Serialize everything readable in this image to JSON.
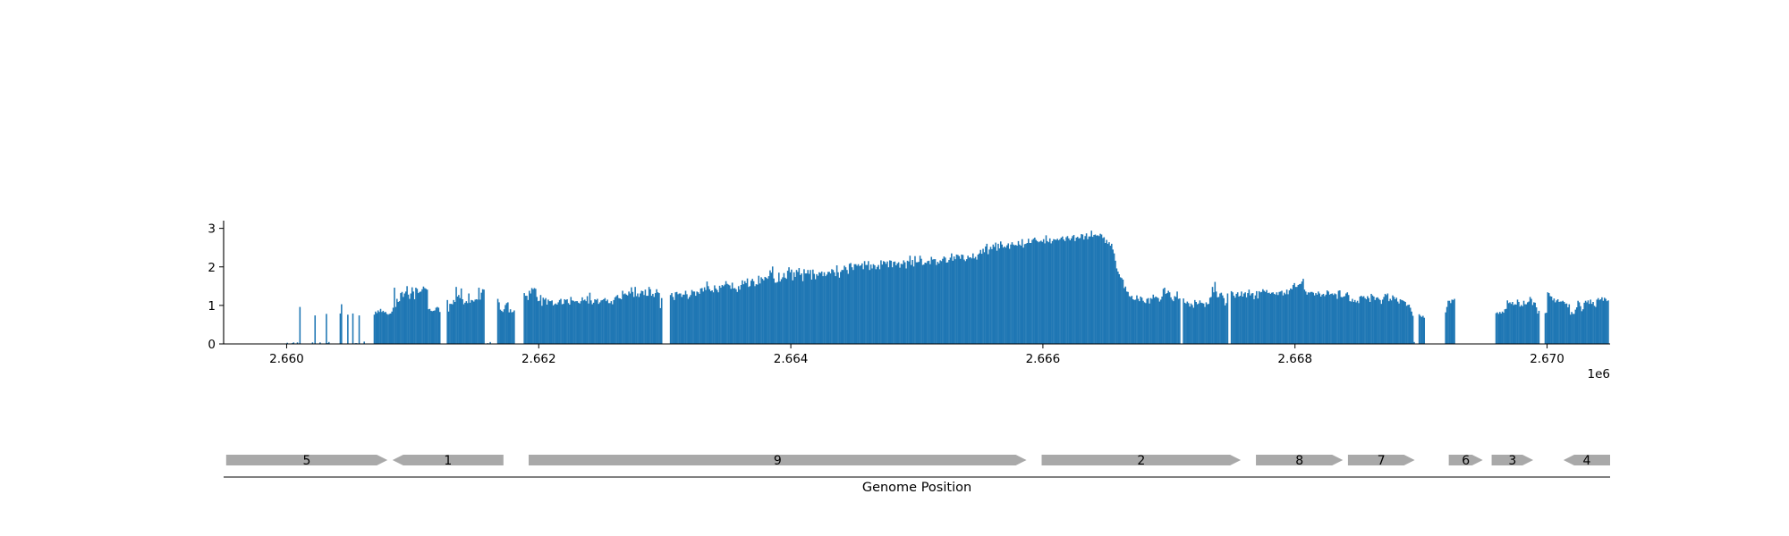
{
  "chart_data": [
    {
      "type": "bar",
      "title": "",
      "xlabel": "",
      "ylabel": "",
      "x_offset_label": "1e6",
      "xlim": [
        2659500,
        2670500
      ],
      "ylim": [
        0,
        3.2
      ],
      "x_ticks": [
        {
          "value": 2660000,
          "label": "2.660"
        },
        {
          "value": 2662000,
          "label": "2.662"
        },
        {
          "value": 2664000,
          "label": "2.664"
        },
        {
          "value": 2666000,
          "label": "2.666"
        },
        {
          "value": 2668000,
          "label": "2.668"
        },
        {
          "value": 2670000,
          "label": "2.670"
        }
      ],
      "y_ticks": [
        {
          "value": 0,
          "label": "0"
        },
        {
          "value": 1,
          "label": "1"
        },
        {
          "value": 2,
          "label": "2"
        },
        {
          "value": 3,
          "label": "3"
        }
      ],
      "bar_color": "#1f77b4",
      "bin_width": 10,
      "series_start": 2660000,
      "values": [
        0.03,
        0.0,
        0.0,
        0.0,
        0.02,
        0.04,
        0.0,
        0.0,
        0.04,
        0.0,
        0.96,
        0.0,
        0.0,
        0.0,
        0.0,
        0.0,
        0.0,
        0.0,
        0.0,
        0.0,
        0.04,
        0.0,
        0.74,
        0.0,
        0.0,
        0.0,
        0.04,
        0.0,
        0.0,
        0.0,
        0.0,
        0.78,
        0.02,
        0.05,
        0.0,
        0.0,
        0.0,
        0.0,
        0.0,
        0.0,
        0.01,
        0.0,
        0.79,
        1.03,
        0.01,
        0.0,
        0.0,
        0.0,
        0.76,
        0.01,
        0.0,
        0.0,
        0.79,
        0.0,
        0.02,
        0.02,
        0.0,
        0.74,
        0.0,
        0.01,
        0.0,
        0.06,
        0.0,
        0.0,
        0.0,
        0.0,
        0.0,
        0.0,
        0.0,
        0.76,
        0.84,
        0.8,
        0.87,
        0.83,
        0.91,
        0.83,
        0.86,
        0.82,
        0.83,
        0.78,
        0.76,
        0.78,
        0.79,
        0.84,
        0.94,
        1.46,
        0.96,
        1.17,
        1.09,
        1.11,
        1.32,
        1.35,
        1.22,
        1.31,
        1.36,
        1.5,
        1.28,
        1.17,
        1.31,
        1.47,
        1.36,
        1.16,
        1.46,
        1.43,
        1.32,
        1.35,
        1.36,
        1.42,
        1.49,
        1.45,
        1.43,
        1.41,
        0.9,
        0.91,
        0.86,
        0.85,
        0.86,
        0.87,
        0.94,
        0.96,
        0.94,
        0.83,
        0.0,
        0.0,
        0.0,
        0.0,
        0.0,
        1.14,
        0.84,
        1.04,
        1.04,
        1.03,
        1.14,
        1.09,
        1.48,
        1.23,
        1.27,
        1.19,
        1.44,
        1.16,
        1.03,
        1.07,
        1.11,
        1.06,
        1.31,
        1.07,
        1.14,
        1.13,
        1.1,
        1.15,
        1.16,
        1.15,
        1.46,
        1.15,
        1.33,
        1.42,
        1.41,
        0.0,
        0.0,
        0.02,
        0.0,
        0.05,
        0.0,
        0.0,
        0.0,
        0.0,
        0.0,
        1.17,
        1.08,
        0.89,
        0.86,
        0.83,
        0.9,
        1.01,
        1.06,
        1.08,
        0.82,
        0.9,
        0.82,
        0.83,
        0.87,
        0.0,
        0.0,
        0.0,
        0.0,
        0.0,
        0.0,
        0.0,
        1.32,
        1.25,
        1.25,
        1.14,
        1.38,
        1.31,
        1.45,
        1.42,
        1.45,
        1.43,
        1.22,
        1.11,
        1.12,
        1.27,
        0.99,
        1.2,
        1.15,
        1.19,
        1.02,
        1.15,
        1.11,
        1.11,
        1.13,
        1.0,
        1.03,
        1.05,
        1.02,
        1.08,
        1.14,
        1.17,
        1.03,
        1.04,
        1.16,
        1.14,
        1.16,
        1.06,
        1.02,
        1.22,
        1.13,
        1.12,
        1.1,
        1.11,
        1.11,
        1.07,
        1.05,
        1.11,
        1.21,
        1.13,
        1.15,
        1.11,
        1.24,
        1.05,
        1.33,
        1.13,
        1.03,
        1.07,
        1.16,
        1.14,
        1.17,
        1.04,
        1.08,
        1.13,
        1.14,
        1.16,
        1.19,
        1.11,
        1.15,
        1.06,
        1.06,
        1.11,
        1.03,
        1.14,
        1.21,
        1.24,
        1.27,
        1.19,
        1.18,
        1.16,
        1.38,
        1.29,
        1.31,
        1.28,
        1.26,
        1.36,
        1.31,
        1.47,
        1.35,
        1.22,
        1.48,
        1.24,
        1.31,
        1.22,
        1.31,
        1.38,
        1.37,
        1.27,
        1.41,
        1.25,
        1.25,
        1.48,
        1.42,
        1.25,
        1.3,
        1.22,
        1.32,
        1.42,
        1.34,
        1.32,
        0.93,
        1.19,
        0.0,
        0.0,
        0.0,
        0.0,
        0.0,
        0.0,
        1.27,
        1.32,
        1.22,
        1.14,
        1.34,
        1.35,
        1.29,
        1.31,
        1.31,
        1.22,
        1.28,
        1.28,
        1.38,
        1.29,
        1.17,
        1.22,
        1.27,
        1.4,
        1.36,
        1.36,
        1.25,
        1.36,
        1.34,
        1.3,
        1.44,
        1.45,
        1.36,
        1.47,
        1.4,
        1.62,
        1.5,
        1.42,
        1.37,
        1.39,
        1.34,
        1.52,
        1.44,
        1.4,
        1.34,
        1.51,
        1.46,
        1.53,
        1.5,
        1.54,
        1.63,
        1.56,
        1.54,
        1.52,
        1.43,
        1.59,
        1.44,
        1.45,
        1.42,
        1.35,
        1.5,
        1.41,
        1.53,
        1.65,
        1.55,
        1.63,
        1.58,
        1.7,
        1.48,
        1.5,
        1.64,
        1.69,
        1.63,
        1.5,
        1.55,
        1.54,
        1.77,
        1.57,
        1.73,
        1.69,
        1.65,
        1.74,
        1.72,
        1.69,
        1.76,
        1.91,
        1.85,
        2.01,
        1.7,
        1.59,
        1.59,
        1.61,
        1.85,
        1.62,
        1.68,
        1.73,
        1.84,
        1.72,
        1.69,
        1.9,
        1.99,
        1.86,
        1.93,
        1.65,
        1.86,
        1.74,
        1.92,
        1.87,
        1.97,
        1.79,
        1.83,
        1.63,
        1.94,
        1.83,
        1.83,
        1.92,
        1.82,
        1.92,
        1.67,
        1.93,
        1.82,
        1.68,
        1.81,
        1.77,
        1.86,
        1.84,
        1.88,
        1.76,
        1.86,
        1.76,
        1.8,
        1.87,
        1.87,
        1.83,
        1.94,
        1.92,
        1.86,
        1.76,
        2.04,
        1.86,
        1.72,
        1.87,
        1.92,
        1.92,
        2.03,
        1.99,
        1.92,
        1.82,
        2.08,
        2.1,
        1.99,
        1.92,
        2.07,
        2.07,
        2.03,
        2.07,
        2.02,
        2.04,
        2.09,
        1.94,
        2.15,
        2.05,
        2.05,
        2.15,
        1.92,
        2.06,
        1.96,
        2.07,
        2.04,
        1.94,
        2.0,
        2.05,
        1.94,
        2.17,
        2.06,
        2.15,
        2.13,
        2.08,
        2.14,
        1.99,
        2.17,
        2.16,
        1.99,
        2.13,
        2.14,
        2.04,
        2.09,
        2.12,
        1.98,
        2.08,
        2.07,
        2.17,
        2.12,
        1.96,
        2.16,
        2.14,
        2.29,
        2.05,
        2.18,
        2.01,
        2.28,
        2.12,
        2.12,
        2.13,
        2.29,
        2.21,
        2.05,
        2.06,
        2.11,
        2.1,
        2.15,
        2.16,
        2.07,
        2.26,
        2.19,
        2.2,
        2.2,
        2.05,
        2.13,
        2.09,
        2.17,
        2.15,
        2.21,
        2.27,
        2.24,
        2.11,
        2.12,
        2.18,
        2.24,
        2.35,
        2.16,
        2.27,
        2.2,
        2.32,
        2.31,
        2.28,
        2.21,
        2.32,
        2.31,
        2.19,
        2.15,
        2.2,
        2.29,
        2.24,
        2.25,
        2.22,
        2.35,
        2.22,
        2.26,
        2.19,
        2.32,
        2.35,
        2.44,
        2.34,
        2.47,
        2.38,
        2.53,
        2.6,
        2.33,
        2.45,
        2.52,
        2.46,
        2.58,
        2.52,
        2.63,
        2.42,
        2.6,
        2.48,
        2.66,
        2.58,
        2.5,
        2.53,
        2.5,
        2.56,
        2.61,
        2.47,
        2.58,
        2.64,
        2.58,
        2.56,
        2.57,
        2.55,
        2.67,
        2.58,
        2.55,
        2.72,
        2.5,
        2.59,
        2.6,
        2.62,
        2.73,
        2.62,
        2.62,
        2.7,
        2.73,
        2.76,
        2.7,
        2.67,
        2.64,
        2.66,
        2.68,
        2.65,
        2.72,
        2.61,
        2.82,
        2.67,
        2.64,
        2.74,
        2.61,
        2.67,
        2.72,
        2.71,
        2.7,
        2.73,
        2.69,
        2.72,
        2.76,
        2.79,
        2.71,
        2.67,
        2.77,
        2.8,
        2.74,
        2.69,
        2.74,
        2.8,
        2.83,
        2.67,
        2.76,
        2.78,
        2.74,
        2.75,
        2.85,
        2.84,
        2.71,
        2.8,
        2.87,
        2.72,
        2.79,
        2.79,
        2.94,
        2.78,
        2.83,
        2.84,
        2.81,
        2.82,
        2.8,
        2.86,
        2.84,
        2.75,
        2.77,
        2.62,
        2.7,
        2.6,
        2.64,
        2.55,
        2.6,
        2.45,
        2.35,
        2.16,
        1.96,
        1.88,
        1.81,
        1.73,
        1.71,
        1.67,
        1.45,
        1.49,
        1.36,
        1.35,
        1.24,
        1.22,
        1.25,
        1.16,
        1.14,
        1.15,
        1.26,
        1.17,
        1.11,
        1.23,
        1.2,
        1.12,
        1.08,
        1.06,
        1.17,
        1.19,
        1.05,
        1.19,
        1.17,
        1.28,
        1.2,
        1.23,
        1.21,
        1.19,
        1.1,
        1.15,
        1.23,
        1.43,
        1.46,
        1.3,
        1.32,
        1.38,
        1.34,
        1.21,
        1.15,
        1.11,
        1.24,
        1.22,
        1.36,
        1.17,
        1.18,
        0.0,
        0.0,
        1.18,
        1.07,
        1.05,
        1.1,
        1.06,
        0.97,
        1.05,
        1.01,
        0.94,
        1.14,
        1.09,
        1.03,
        1.05,
        1.13,
        1.07,
        1.06,
        1.05,
        0.96,
        1.08,
        1.03,
        1.04,
        1.2,
        1.22,
        1.48,
        1.34,
        1.61,
        1.36,
        1.21,
        1.22,
        1.31,
        1.33,
        1.26,
        1.19,
        1.0,
        1.06,
        1.31,
        0.0,
        0.0,
        1.37,
        1.34,
        1.25,
        1.2,
        1.3,
        1.34,
        1.23,
        1.25,
        1.36,
        1.23,
        1.31,
        1.34,
        1.21,
        1.32,
        1.41,
        1.26,
        1.31,
        1.32,
        1.16,
        1.26,
        1.37,
        1.18,
        1.37,
        1.34,
        1.35,
        1.42,
        1.38,
        1.35,
        1.4,
        1.32,
        1.33,
        1.3,
        1.33,
        1.34,
        1.3,
        1.28,
        1.34,
        1.27,
        1.35,
        1.36,
        1.38,
        1.26,
        1.33,
        1.29,
        1.41,
        1.29,
        1.39,
        1.44,
        1.42,
        1.53,
        1.58,
        1.48,
        1.48,
        1.53,
        1.55,
        1.56,
        1.62,
        1.69,
        1.41,
        1.36,
        1.28,
        1.34,
        1.33,
        1.35,
        1.35,
        1.33,
        1.26,
        1.32,
        1.28,
        1.36,
        1.31,
        1.23,
        1.28,
        1.3,
        1.24,
        1.28,
        1.39,
        1.36,
        1.28,
        1.3,
        1.31,
        1.27,
        1.31,
        1.29,
        1.17,
        1.38,
        1.39,
        1.22,
        1.21,
        1.23,
        1.24,
        1.31,
        1.34,
        1.27,
        1.11,
        1.1,
        1.17,
        1.09,
        1.14,
        1.08,
        1.12,
        1.06,
        1.23,
        1.25,
        1.22,
        1.24,
        1.19,
        1.16,
        1.24,
        1.19,
        1.09,
        1.3,
        1.26,
        1.23,
        1.14,
        1.2,
        1.21,
        1.17,
        1.14,
        1.04,
        1.15,
        1.22,
        1.3,
        1.27,
        1.31,
        1.11,
        1.17,
        1.13,
        1.26,
        1.22,
        1.16,
        1.2,
        1.1,
        1.05,
        1.16,
        1.14,
        1.13,
        1.11,
        1.09,
        0.99,
        1.01,
        1.02,
        0.94,
        0.84,
        0.73,
        0.05,
        0.0,
        0.0,
        0.0,
        0.77,
        0.73,
        0.7,
        0.73,
        0.68,
        0.0,
        0.0,
        0.0,
        0.0,
        0.0,
        0.0,
        0.0,
        0.0,
        0.0,
        0.0,
        0.0,
        0.0,
        0.0,
        0.0,
        0.0,
        0.0,
        0.82,
        0.96,
        1.12,
        1.12,
        1.06,
        1.15,
        1.14,
        1.17,
        0.0,
        0.0,
        0.0,
        0.0,
        0.0,
        0.0,
        0.0,
        0.0,
        0.0,
        0.0,
        0.0,
        0.0,
        0.0,
        0.0,
        0.0,
        0.0,
        0.0,
        0.0,
        0.0,
        0.0,
        0.0,
        0.0,
        0.0,
        0.0,
        0.0,
        0.0,
        0.0,
        0.0,
        0.0,
        0.0,
        0.0,
        0.0,
        0.8,
        0.82,
        0.78,
        0.83,
        0.79,
        0.84,
        0.81,
        0.9,
        0.91,
        1.13,
        1.06,
        1.08,
        1.04,
        1.09,
        1.01,
        1.03,
        1.02,
        1.15,
        1.09,
        0.97,
        1.01,
        0.98,
        1.12,
        1.03,
        1.03,
        1.08,
        1.1,
        1.22,
        1.17,
        1.01,
        1.08,
        1.07,
        0.95,
        0.79,
        0.86,
        0.0,
        0.0,
        0.0,
        0.0,
        0.8,
        0.81,
        1.34,
        1.32,
        1.24,
        1.23,
        1.13,
        1.18,
        1.08,
        1.13,
        1.16,
        1.09,
        1.1,
        1.1,
        1.12,
        1.09,
        1.04,
        1.05,
        0.95,
        1.03,
        0.76,
        0.83,
        0.78,
        0.78,
        0.89,
        0.95,
        1.12,
        1.08,
        0.98,
        0.85,
        0.9,
        1.07,
        1.12,
        1.08,
        1.13,
        1.04,
        1.15,
        1.04,
        1.09,
        0.99,
        0.96,
        1.15,
        1.19,
        1.14,
        1.16,
        1.21,
        1.12,
        1.2,
        1.17,
        1.11,
        1.13,
        0.0
      ],
      "genes": [
        {
          "label": "5",
          "start": 2659520,
          "end": 2660800,
          "strand": "+"
        },
        {
          "label": "1",
          "start": 2660840,
          "end": 2661720,
          "strand": "-"
        },
        {
          "label": "9",
          "start": 2661920,
          "end": 2665870,
          "strand": "+"
        },
        {
          "label": "2",
          "start": 2665990,
          "end": 2667570,
          "strand": "+"
        },
        {
          "label": "8",
          "start": 2667690,
          "end": 2668380,
          "strand": "+"
        },
        {
          "label": "7",
          "start": 2668420,
          "end": 2668950,
          "strand": "+"
        },
        {
          "label": "6",
          "start": 2669220,
          "end": 2669490,
          "strand": "+"
        },
        {
          "label": "3",
          "start": 2669560,
          "end": 2669890,
          "strand": "+"
        },
        {
          "label": "4",
          "start": 2670130,
          "end": 2670500,
          "strand": "-"
        }
      ],
      "gene_color": "#a9a9a9",
      "gene_track_xlabel": "Genome Position"
    }
  ]
}
